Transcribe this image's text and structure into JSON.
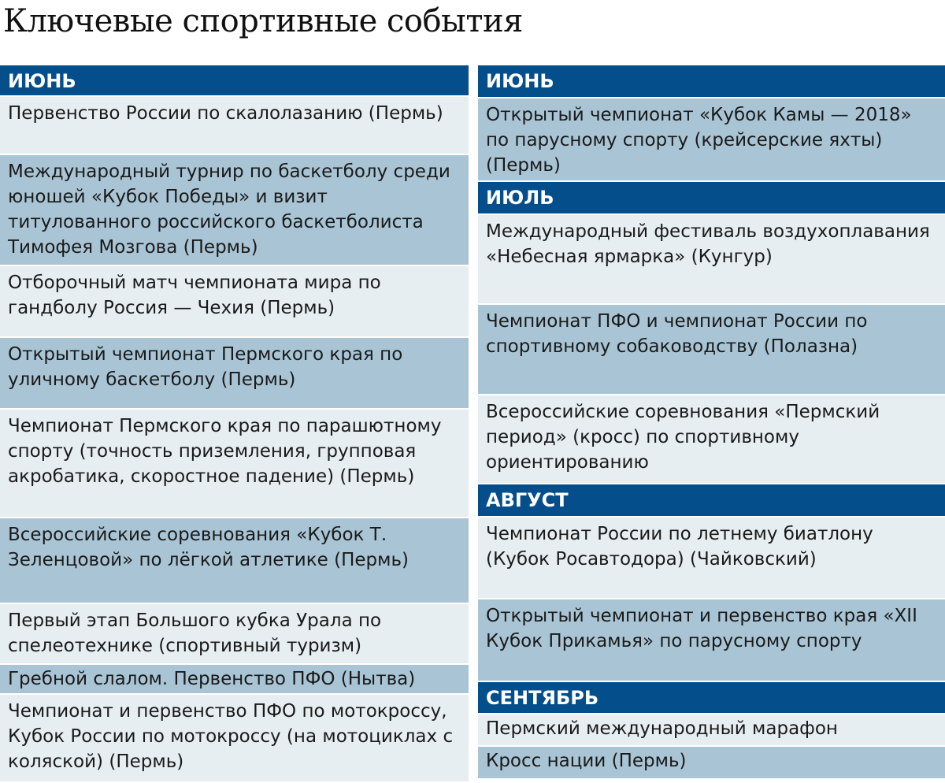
{
  "title": "Ключевые спортивные события",
  "colors": {
    "header": "#044e8c",
    "row_dark": "#a9c5d5",
    "row_light": "#e7eef2"
  },
  "left": {
    "header": "ИЮНЬ",
    "events": [
      "Первенство России по скалолазанию (Пермь)",
      "Международный турнир по баскетболу среди юношей «Кубок Победы» и визит титулованного российского баскетболиста Тимофея Мозгова (Пермь)",
      "Отборочный матч чемпионата мира по гандболу Россия — Чехия (Пермь)",
      "Открытый чемпионат Пермского края по уличному баскетболу (Пермь)",
      "Чемпионат Пермского края по парашютному спорту (точность приземления, групповая акробатика, скоростное падение) (Пермь)",
      "Всероссийские соревнования «Кубок Т. Зеленцовой» по лёгкой атлетике (Пермь)",
      "Первый этап Большого кубка Урала по спелеотехнике (спортивный туризм)",
      "Гребной слалом. Первенство ПФО (Нытва)",
      "Чемпионат и первенство ПФО по мотокроссу, Кубок России по мотокроссу (на мотоциклах с коляской) (Пермь)"
    ]
  },
  "right": {
    "june": {
      "header": "ИЮНЬ",
      "events": [
        "Открытый чемпионат «Кубок Камы — 2018» по парусному спорту (крейсерские яхты) (Пермь)"
      ]
    },
    "july": {
      "header": "ИЮЛЬ",
      "events": [
        "Международный фестиваль воздухоплавания «Небесная ярмарка» (Кунгур)",
        "Чемпионат ПФО и чемпионат России по спортивному собаководству (Полазна)",
        "Всероссийские соревнования «Пермский период» (кросс) по спортивному ориентированию"
      ]
    },
    "august": {
      "header": "АВГУСТ",
      "events": [
        "Чемпионат России по летнему биатлону (Кубок Росавтодора) (Чайковский)",
        "Открытый чемпионат и первенство края «XII Кубок Прикамья» по парусному спорту"
      ]
    },
    "september": {
      "header": "СЕНТЯБРЬ",
      "events": [
        "Пермский международный марафон",
        "Кросс нации (Пермь)"
      ]
    }
  }
}
